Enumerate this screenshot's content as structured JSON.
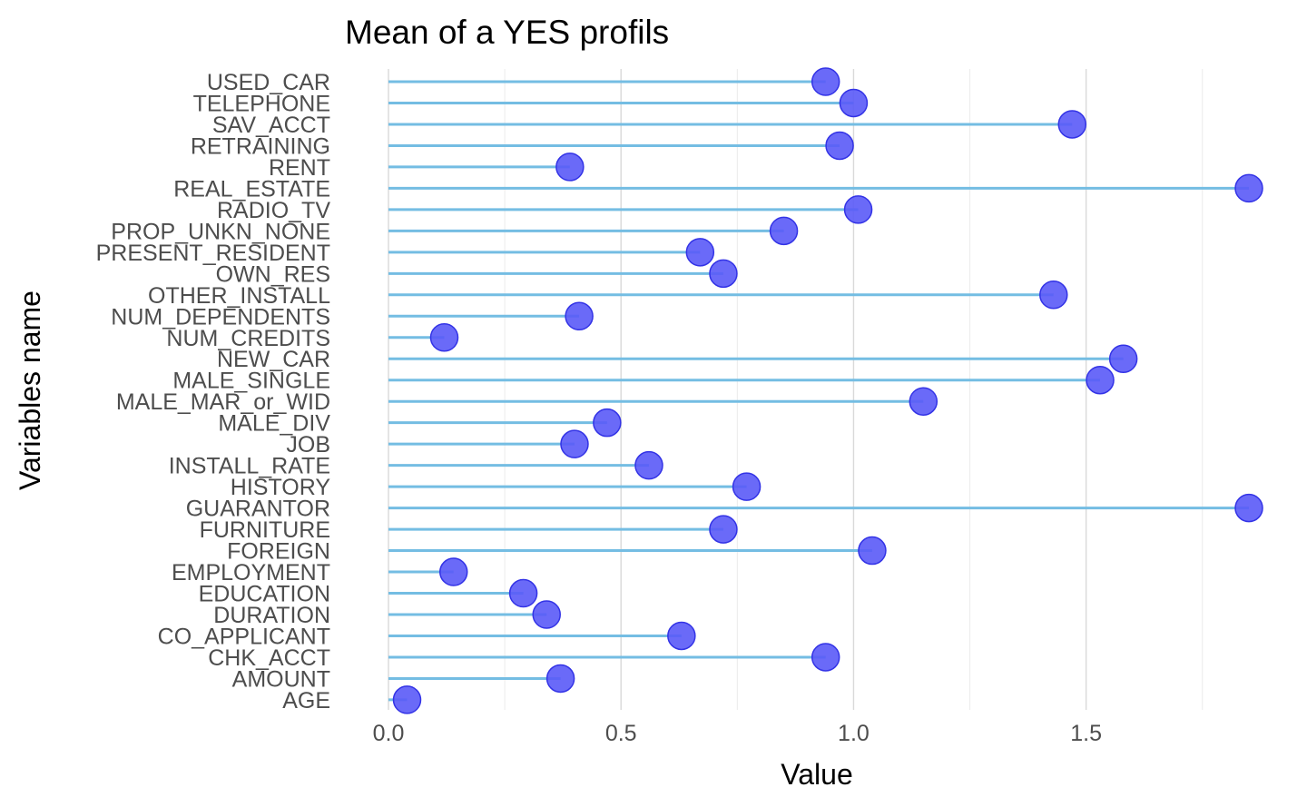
{
  "chart_data": {
    "type": "lollipop",
    "title": "Mean of a YES profils",
    "xlabel": "Value",
    "ylabel": "Variables name",
    "xlim": [
      0,
      1.85
    ],
    "x_ticks": [
      "0.0",
      "0.5",
      "1.0",
      "1.5"
    ],
    "x_tick_values": [
      0,
      0.5,
      1.0,
      1.5
    ],
    "grid": "vertical",
    "colors": {
      "stem": "#74bde3",
      "point_fill": "#5a5af7",
      "point_stroke": "#3333e6"
    },
    "categories": [
      "USED_CAR",
      "TELEPHONE",
      "SAV_ACCT",
      "RETRAINING",
      "RENT",
      "REAL_ESTATE",
      "RADIO_TV",
      "PROP_UNKN_NONE",
      "PRESENT_RESIDENT",
      "OWN_RES",
      "OTHER_INSTALL",
      "NUM_DEPENDENTS",
      "NUM_CREDITS",
      "NEW_CAR",
      "MALE_SINGLE",
      "MALE_MAR_or_WID",
      "MALE_DIV",
      "JOB",
      "INSTALL_RATE",
      "HISTORY",
      "GUARANTOR",
      "FURNITURE",
      "FOREIGN",
      "EMPLOYMENT",
      "EDUCATION",
      "DURATION",
      "CO_APPLICANT",
      "CHK_ACCT",
      "AMOUNT",
      "AGE"
    ],
    "values": [
      0.94,
      1.0,
      1.47,
      0.97,
      0.39,
      1.85,
      1.01,
      0.85,
      0.67,
      0.72,
      1.43,
      0.41,
      0.12,
      1.58,
      1.53,
      1.15,
      0.47,
      0.4,
      0.56,
      0.77,
      1.85,
      0.72,
      1.04,
      0.14,
      0.29,
      0.34,
      0.63,
      0.94,
      0.37,
      0.04
    ]
  }
}
